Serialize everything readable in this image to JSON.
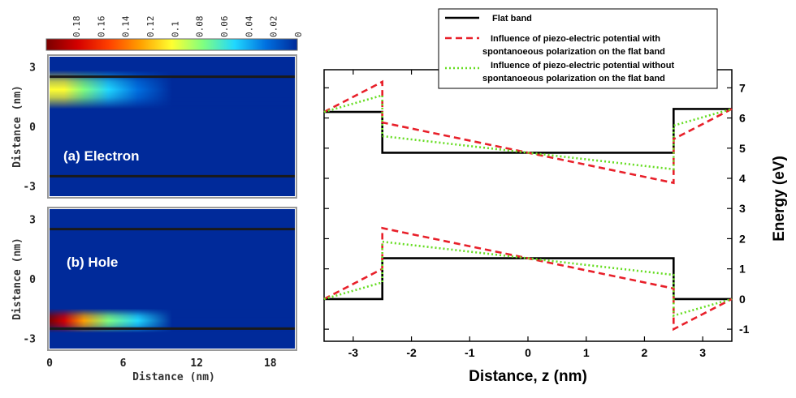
{
  "chart_data": [
    {
      "type": "heatmap",
      "colorbar": {
        "tick_labels": [
          "0.18",
          "0.16",
          "0.14",
          "0.12",
          "0.1",
          "0.08",
          "0.06",
          "0.04",
          "0.02",
          "0"
        ],
        "max": 0.2,
        "min": 0,
        "colormap": [
          "#7a0000",
          "#d40000",
          "#ff4000",
          "#ffa000",
          "#ffff30",
          "#80ff80",
          "#20d8ff",
          "#0070e0",
          "#002a9a"
        ]
      },
      "panels": [
        {
          "label": "(a) Electron",
          "ylabel": "Distance (nm)",
          "y_ticks": [
            "3",
            "0",
            "-3"
          ],
          "xlim": [
            0,
            20
          ],
          "ylim": [
            -3.5,
            3.5
          ],
          "barrier_lines_nm": [
            2.5,
            -2.5
          ],
          "peak_z_nm": 1.85,
          "peak_value": 0.11
        },
        {
          "label": "(b) Hole",
          "ylabel": "Distance (nm)",
          "y_ticks": [
            "3",
            "0",
            "-3"
          ],
          "xlim": [
            0,
            20
          ],
          "ylim": [
            -3.5,
            3.5
          ],
          "barrier_lines_nm": [
            2.5,
            -2.5
          ],
          "peak_z_nm": -2.1,
          "peak_value": 0.19
        }
      ],
      "x_ticks": [
        "0",
        "6",
        "12",
        "18"
      ],
      "xlabel": "Distance (nm)"
    },
    {
      "type": "line",
      "xlabel": "Distance, z (nm)",
      "ylabel": "Energy (eV)",
      "xlim": [
        -3.5,
        3.5
      ],
      "ylim": [
        -1.4,
        7.6
      ],
      "x_ticks": [
        -3,
        -2,
        -1,
        0,
        1,
        2,
        3
      ],
      "y_ticks": [
        -1,
        0,
        1,
        2,
        3,
        4,
        5,
        6,
        7
      ],
      "legend": {
        "position": "top-right",
        "entries": [
          {
            "line1": "Flat band",
            "line2": ""
          },
          {
            "line1": "Influence of piezo-electric potential with",
            "line2": "spontanoeous polarization on the flat band"
          },
          {
            "line1": "Influence of piezo-electric potential without",
            "line2": "spontanoeous polarization on the flat band"
          }
        ]
      },
      "series": [
        {
          "name": "Flat band",
          "color": "#000000",
          "style": "solid",
          "conduction": [
            [
              -3.5,
              6.2
            ],
            [
              -2.5,
              6.2
            ],
            [
              -2.5,
              4.85
            ],
            [
              2.5,
              4.85
            ],
            [
              2.5,
              6.3
            ],
            [
              3.5,
              6.3
            ]
          ],
          "valence": [
            [
              -3.5,
              0.0
            ],
            [
              -2.5,
              0.0
            ],
            [
              -2.5,
              1.35
            ],
            [
              2.5,
              1.35
            ],
            [
              2.5,
              0.0
            ],
            [
              3.5,
              0.0
            ]
          ]
        },
        {
          "name": "Influence of piezo-electric potential with spontanoeous polarization on the flat band",
          "color": "#e8202a",
          "style": "dashed",
          "conduction": [
            [
              -3.5,
              6.2
            ],
            [
              -2.5,
              7.2
            ],
            [
              -2.5,
              5.85
            ],
            [
              2.5,
              3.85
            ],
            [
              2.5,
              5.3
            ],
            [
              3.5,
              6.3
            ]
          ],
          "valence": [
            [
              -3.5,
              0.0
            ],
            [
              -2.5,
              1.0
            ],
            [
              -2.5,
              2.35
            ],
            [
              2.5,
              0.35
            ],
            [
              2.5,
              -1.0
            ],
            [
              3.5,
              0.0
            ]
          ]
        },
        {
          "name": "Influence of piezo-electric potential without spontanoeous polarization on the flat band",
          "color": "#66dd22",
          "style": "dotted",
          "conduction": [
            [
              -3.5,
              6.2
            ],
            [
              -2.5,
              6.75
            ],
            [
              -2.5,
              5.4
            ],
            [
              2.5,
              4.3
            ],
            [
              2.5,
              5.75
            ],
            [
              3.5,
              6.3
            ]
          ],
          "valence": [
            [
              -3.5,
              0.0
            ],
            [
              -2.5,
              0.55
            ],
            [
              -2.5,
              1.9
            ],
            [
              2.5,
              0.8
            ],
            [
              2.5,
              -0.55
            ],
            [
              3.5,
              0.0
            ]
          ]
        }
      ]
    }
  ]
}
